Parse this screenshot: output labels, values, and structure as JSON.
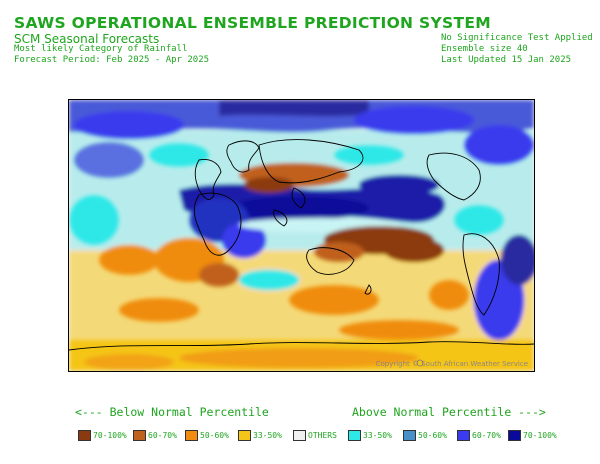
{
  "header": {
    "title": "SAWS OPERATIONAL ENSEMBLE PREDICTION SYSTEM",
    "subtitle": "SCM Seasonal Forecasts",
    "left_lines": [
      "Most likely Category of Rainfall",
      "Forecast Period: Feb 2025 - Apr 2025"
    ],
    "right_lines": [
      "No Significance Test Applied",
      "Ensemble size 40",
      "Last Updated 15 Jan 2025"
    ]
  },
  "map": {
    "copyright": "Copyright © South African Weather Service"
  },
  "legend": {
    "below_label": "<--- Below Normal Percentile",
    "above_label": "Above Normal Percentile --->",
    "items": [
      {
        "label": "70-100%",
        "color": "#8b3a0f"
      },
      {
        "label": "60-70%",
        "color": "#c0611d"
      },
      {
        "label": "50-60%",
        "color": "#f08c10"
      },
      {
        "label": "33-50%",
        "color": "#f5c518"
      },
      {
        "label": "OTHERS",
        "color": "#f0f0f0"
      },
      {
        "label": "33-50%",
        "color": "#2ee8e8"
      },
      {
        "label": "50-60%",
        "color": "#4a90c8"
      },
      {
        "label": "60-70%",
        "color": "#3a3aee"
      },
      {
        "label": "70-100%",
        "color": "#0a0a9a"
      }
    ]
  }
}
